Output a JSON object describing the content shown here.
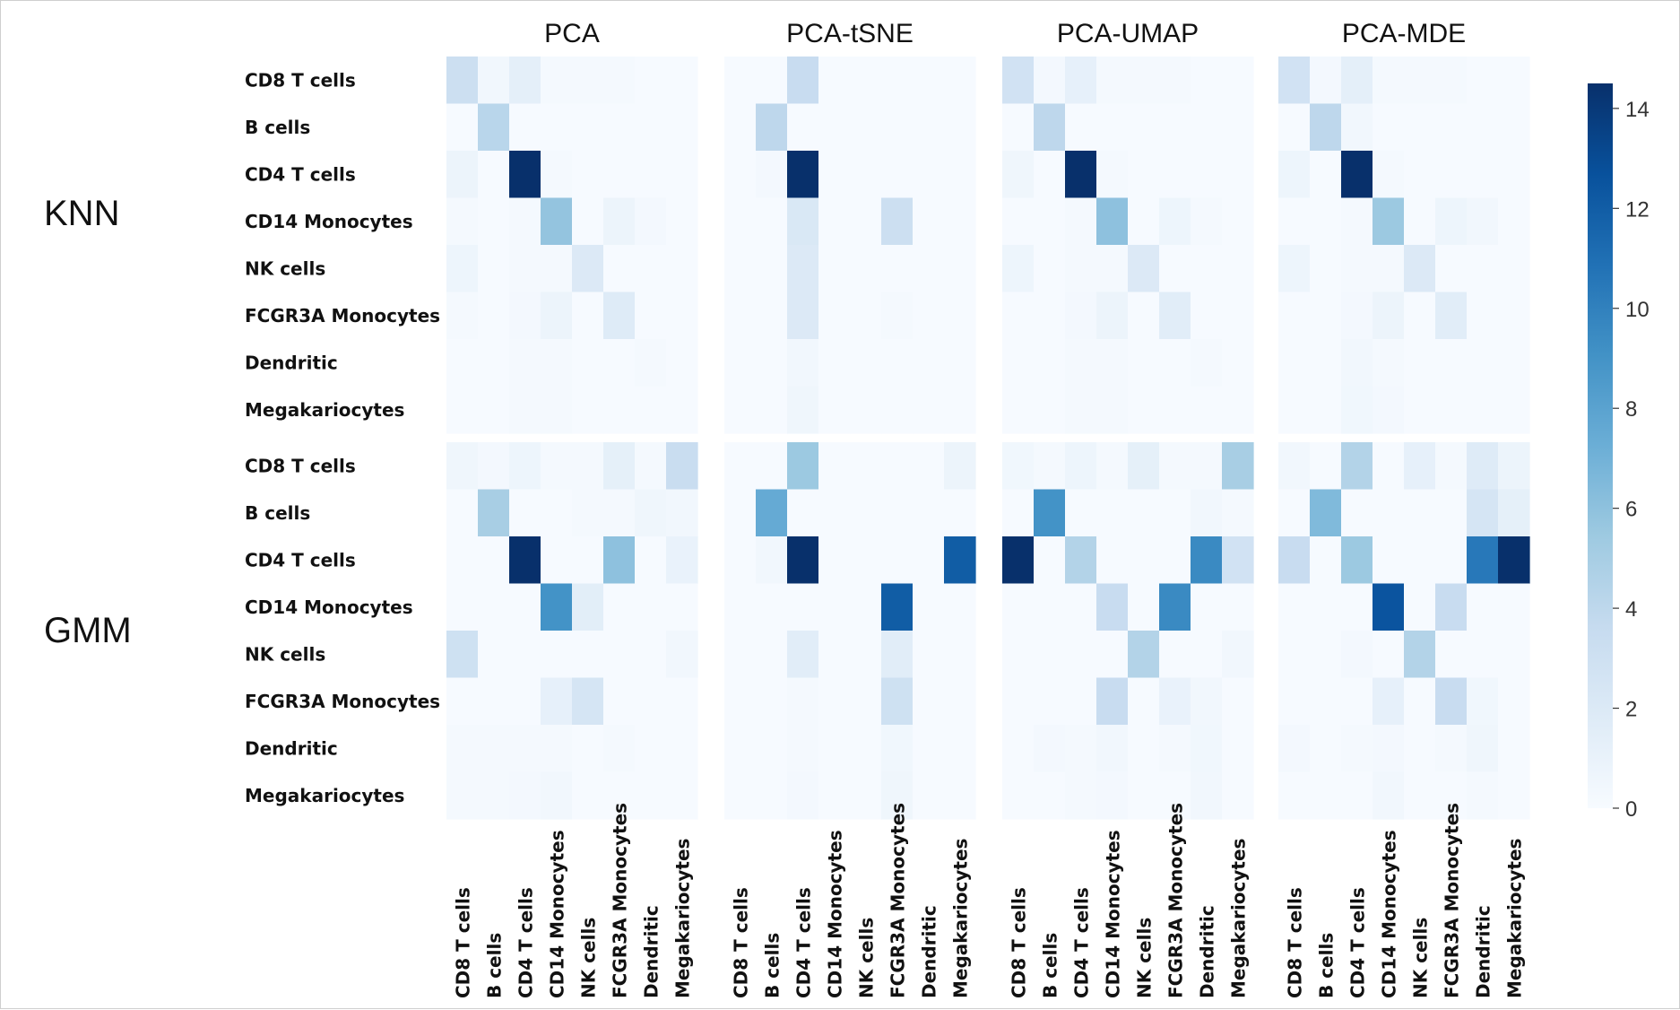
{
  "chart_data": {
    "type": "heatmap",
    "column_titles": [
      "PCA",
      "PCA-tSNE",
      "PCA-UMAP",
      "PCA-MDE"
    ],
    "row_titles": [
      "KNN",
      "GMM"
    ],
    "y_categories": [
      "CD8 T cells",
      "B cells",
      "CD4 T cells",
      "CD14 Monocytes",
      "NK cells",
      "FCGR3A Monocytes",
      "Dendritic",
      "Megakariocytes"
    ],
    "x_categories": [
      "CD8 T cells",
      "B cells",
      "CD4 T cells",
      "CD14 Monocytes",
      "NK cells",
      "FCGR3A Monocytes",
      "Dendritic",
      "Megakariocytes"
    ],
    "colorbar": {
      "colormap": "Blues",
      "range": [
        0,
        14.5
      ],
      "ticks": [
        0,
        2,
        4,
        6,
        8,
        10,
        12,
        14
      ]
    },
    "panels": [
      {
        "row": "KNN",
        "column": "PCA",
        "values": [
          [
            3.2,
            0.4,
            1.4,
            0.2,
            0.2,
            0.2,
            0.1,
            0.1
          ],
          [
            0.1,
            4.2,
            0.1,
            0.1,
            0.1,
            0.1,
            0.1,
            0.1
          ],
          [
            0.8,
            0.1,
            14.5,
            0.2,
            0.1,
            0.1,
            0.1,
            0.1
          ],
          [
            0.2,
            0.1,
            0.2,
            5.8,
            0.1,
            0.8,
            0.3,
            0.1
          ],
          [
            0.7,
            0.1,
            0.2,
            0.2,
            2.0,
            0.1,
            0.1,
            0.1
          ],
          [
            0.2,
            0.1,
            0.3,
            0.8,
            0.1,
            1.8,
            0.1,
            0.1
          ],
          [
            0.1,
            0.1,
            0.2,
            0.2,
            0.1,
            0.1,
            0.2,
            0.1
          ],
          [
            0.1,
            0.1,
            0.2,
            0.2,
            0.1,
            0.1,
            0.1,
            0.1
          ]
        ]
      },
      {
        "row": "KNN",
        "column": "PCA-tSNE",
        "values": [
          [
            0.1,
            0.1,
            3.5,
            0.1,
            0.1,
            0.1,
            0.1,
            0.1
          ],
          [
            0.1,
            4.0,
            0.1,
            0.1,
            0.1,
            0.1,
            0.1,
            0.1
          ],
          [
            0.1,
            0.3,
            14.5,
            0.1,
            0.1,
            0.1,
            0.1,
            0.1
          ],
          [
            0.1,
            0.1,
            2.2,
            0.1,
            0.1,
            3.2,
            0.1,
            0.1
          ],
          [
            0.1,
            0.1,
            2.0,
            0.1,
            0.1,
            0.1,
            0.1,
            0.1
          ],
          [
            0.1,
            0.1,
            2.0,
            0.1,
            0.1,
            0.2,
            0.1,
            0.1
          ],
          [
            0.1,
            0.1,
            0.4,
            0.1,
            0.1,
            0.1,
            0.1,
            0.1
          ],
          [
            0.1,
            0.1,
            0.6,
            0.1,
            0.1,
            0.1,
            0.1,
            0.1
          ]
        ]
      },
      {
        "row": "KNN",
        "column": "PCA-UMAP",
        "values": [
          [
            2.8,
            0.3,
            1.2,
            0.2,
            0.2,
            0.2,
            0.1,
            0.1
          ],
          [
            0.1,
            4.0,
            0.1,
            0.1,
            0.1,
            0.1,
            0.1,
            0.1
          ],
          [
            0.6,
            0.1,
            14.5,
            0.2,
            0.1,
            0.1,
            0.1,
            0.1
          ],
          [
            0.1,
            0.1,
            0.2,
            6.0,
            0.1,
            0.7,
            0.2,
            0.1
          ],
          [
            0.7,
            0.1,
            0.2,
            0.2,
            2.0,
            0.1,
            0.1,
            0.1
          ],
          [
            0.1,
            0.1,
            0.3,
            0.8,
            0.1,
            1.6,
            0.1,
            0.1
          ],
          [
            0.1,
            0.1,
            0.2,
            0.2,
            0.1,
            0.1,
            0.2,
            0.1
          ],
          [
            0.1,
            0.1,
            0.2,
            0.2,
            0.1,
            0.1,
            0.1,
            0.1
          ]
        ]
      },
      {
        "row": "KNN",
        "column": "PCA-MDE",
        "values": [
          [
            2.8,
            0.3,
            1.4,
            0.2,
            0.2,
            0.2,
            0.1,
            0.1
          ],
          [
            0.1,
            4.0,
            0.4,
            0.1,
            0.1,
            0.1,
            0.1,
            0.1
          ],
          [
            0.7,
            0.1,
            14.5,
            0.2,
            0.1,
            0.1,
            0.1,
            0.1
          ],
          [
            0.1,
            0.1,
            0.2,
            5.5,
            0.1,
            0.7,
            0.4,
            0.1
          ],
          [
            0.7,
            0.1,
            0.2,
            0.2,
            2.0,
            0.1,
            0.1,
            0.1
          ],
          [
            0.1,
            0.1,
            0.3,
            0.8,
            0.1,
            1.6,
            0.1,
            0.1
          ],
          [
            0.1,
            0.1,
            0.4,
            0.2,
            0.1,
            0.1,
            0.1,
            0.1
          ],
          [
            0.1,
            0.1,
            0.5,
            0.3,
            0.1,
            0.1,
            0.1,
            0.1
          ]
        ]
      },
      {
        "row": "GMM",
        "column": "PCA",
        "values": [
          [
            0.6,
            0.3,
            0.7,
            0.2,
            0.2,
            1.3,
            0.2,
            3.4
          ],
          [
            0.1,
            5.0,
            0.1,
            0.1,
            0.2,
            0.2,
            0.6,
            0.4
          ],
          [
            0.1,
            0.1,
            14.5,
            0.1,
            0.1,
            6.0,
            0.1,
            1.0
          ],
          [
            0.1,
            0.1,
            0.1,
            9.0,
            1.5,
            0.1,
            0.1,
            0.1
          ],
          [
            3.0,
            0.1,
            0.1,
            0.1,
            0.1,
            0.1,
            0.1,
            0.4
          ],
          [
            0.1,
            0.1,
            0.1,
            1.2,
            2.5,
            0.1,
            0.1,
            0.1
          ],
          [
            0.2,
            0.2,
            0.2,
            0.2,
            0.1,
            0.2,
            0.1,
            0.1
          ],
          [
            0.2,
            0.2,
            0.3,
            0.4,
            0.1,
            0.1,
            0.1,
            0.1
          ]
        ]
      },
      {
        "row": "GMM",
        "column": "PCA-tSNE",
        "values": [
          [
            0.1,
            0.1,
            5.5,
            0.1,
            0.1,
            0.1,
            0.1,
            0.8
          ],
          [
            0.1,
            7.5,
            0.1,
            0.1,
            0.1,
            0.1,
            0.1,
            0.1
          ],
          [
            0.1,
            0.4,
            14.5,
            0.1,
            0.1,
            0.1,
            0.1,
            12.0
          ],
          [
            0.1,
            0.1,
            0.1,
            0.1,
            0.1,
            12.0,
            0.1,
            0.1
          ],
          [
            0.1,
            0.1,
            1.6,
            0.1,
            0.1,
            1.6,
            0.1,
            0.1
          ],
          [
            0.1,
            0.1,
            0.2,
            0.1,
            0.1,
            3.0,
            0.1,
            0.1
          ],
          [
            0.1,
            0.1,
            0.2,
            0.1,
            0.1,
            0.5,
            0.1,
            0.1
          ],
          [
            0.1,
            0.1,
            0.3,
            0.1,
            0.1,
            0.6,
            0.1,
            0.1
          ]
        ]
      },
      {
        "row": "GMM",
        "column": "PCA-UMAP",
        "values": [
          [
            0.5,
            0.2,
            0.7,
            0.2,
            1.3,
            0.2,
            0.2,
            5.0
          ],
          [
            0.1,
            9.0,
            0.1,
            0.1,
            0.1,
            0.1,
            0.4,
            0.2
          ],
          [
            14.5,
            0.1,
            4.5,
            0.1,
            0.1,
            0.1,
            9.5,
            2.8
          ],
          [
            0.1,
            0.1,
            0.1,
            3.5,
            0.1,
            9.5,
            0.1,
            0.1
          ],
          [
            0.1,
            0.1,
            0.1,
            0.1,
            4.5,
            0.1,
            0.1,
            0.4
          ],
          [
            0.1,
            0.1,
            0.1,
            3.5,
            0.1,
            1.0,
            0.4,
            0.1
          ],
          [
            0.1,
            0.3,
            0.2,
            0.4,
            0.1,
            0.2,
            0.5,
            0.1
          ],
          [
            0.1,
            0.1,
            0.2,
            0.3,
            0.1,
            0.1,
            0.4,
            0.1
          ]
        ]
      },
      {
        "row": "GMM",
        "column": "PCA-MDE",
        "values": [
          [
            0.4,
            0.1,
            4.5,
            0.1,
            1.2,
            0.2,
            1.8,
            0.8
          ],
          [
            0.1,
            6.5,
            0.1,
            0.1,
            0.1,
            0.1,
            2.5,
            1.3
          ],
          [
            3.5,
            0.1,
            5.5,
            0.1,
            0.1,
            0.1,
            10.5,
            14.5
          ],
          [
            0.1,
            0.1,
            0.1,
            12.5,
            0.1,
            3.5,
            0.1,
            0.1
          ],
          [
            0.1,
            0.1,
            0.3,
            0.1,
            4.5,
            0.1,
            0.1,
            0.1
          ],
          [
            0.1,
            0.1,
            0.1,
            1.2,
            0.1,
            3.5,
            0.5,
            0.1
          ],
          [
            0.3,
            0.1,
            0.2,
            0.3,
            0.1,
            0.2,
            0.6,
            0.1
          ],
          [
            0.1,
            0.1,
            0.1,
            0.4,
            0.1,
            0.1,
            0.2,
            0.1
          ]
        ]
      }
    ]
  }
}
